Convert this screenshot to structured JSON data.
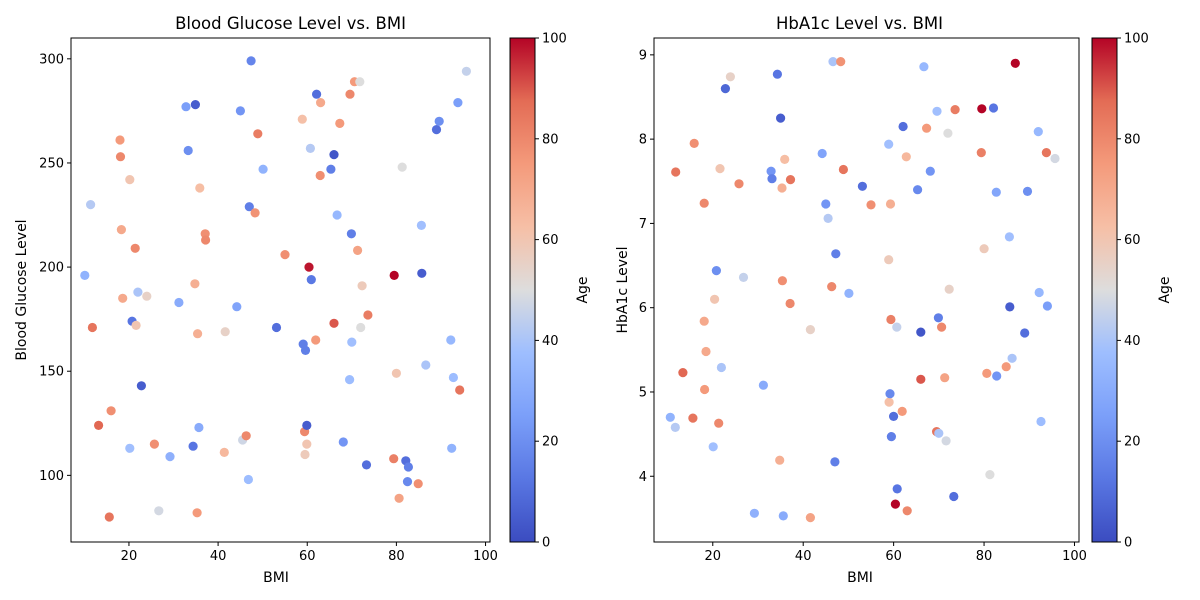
{
  "colors": {
    "colormap": "coolwarm",
    "low": "#3b4cc0",
    "mid": "#dddddd",
    "high": "#b40426",
    "axis": "#000000",
    "background": "#ffffff"
  },
  "chart_data": [
    {
      "type": "scatter",
      "title": "Blood Glucose Level vs. BMI",
      "xlabel": "BMI",
      "ylabel": "Blood Glucose Level",
      "xlim": [
        7,
        101
      ],
      "ylim": [
        68,
        310
      ],
      "xticks": [
        20,
        40,
        60,
        80,
        100
      ],
      "yticks": [
        100,
        150,
        200,
        250,
        300
      ],
      "colorbar": {
        "label": "Age",
        "range": [
          0,
          100
        ],
        "ticks": [
          0,
          20,
          40,
          60,
          80,
          100
        ]
      },
      "grid": false,
      "points": [
        {
          "x": 10.1,
          "y": 196,
          "c": 33
        },
        {
          "x": 11.4,
          "y": 230,
          "c": 42
        },
        {
          "x": 11.8,
          "y": 171,
          "c": 85
        },
        {
          "x": 13.2,
          "y": 124,
          "c": 88
        },
        {
          "x": 15.6,
          "y": 80,
          "c": 85
        },
        {
          "x": 16.0,
          "y": 131,
          "c": 78
        },
        {
          "x": 18.0,
          "y": 261,
          "c": 75
        },
        {
          "x": 18.1,
          "y": 253,
          "c": 80
        },
        {
          "x": 18.3,
          "y": 218,
          "c": 70
        },
        {
          "x": 18.6,
          "y": 185,
          "c": 70
        },
        {
          "x": 20.2,
          "y": 242,
          "c": 60
        },
        {
          "x": 20.2,
          "y": 113,
          "c": 38
        },
        {
          "x": 20.7,
          "y": 174,
          "c": 12
        },
        {
          "x": 21.4,
          "y": 209,
          "c": 80
        },
        {
          "x": 21.6,
          "y": 172,
          "c": 60
        },
        {
          "x": 22.0,
          "y": 188,
          "c": 40
        },
        {
          "x": 22.8,
          "y": 143,
          "c": 5
        },
        {
          "x": 24.0,
          "y": 186,
          "c": 55
        },
        {
          "x": 25.7,
          "y": 115,
          "c": 78
        },
        {
          "x": 26.7,
          "y": 83,
          "c": 48
        },
        {
          "x": 29.2,
          "y": 109,
          "c": 32
        },
        {
          "x": 31.2,
          "y": 183,
          "c": 30
        },
        {
          "x": 32.8,
          "y": 277,
          "c": 25
        },
        {
          "x": 33.3,
          "y": 256,
          "c": 20
        },
        {
          "x": 34.4,
          "y": 114,
          "c": 12
        },
        {
          "x": 34.8,
          "y": 192,
          "c": 68
        },
        {
          "x": 34.9,
          "y": 278,
          "c": 5
        },
        {
          "x": 35.3,
          "y": 82,
          "c": 75
        },
        {
          "x": 35.4,
          "y": 168,
          "c": 68
        },
        {
          "x": 35.7,
          "y": 123,
          "c": 30
        },
        {
          "x": 35.9,
          "y": 238,
          "c": 63
        },
        {
          "x": 37.1,
          "y": 216,
          "c": 78
        },
        {
          "x": 37.2,
          "y": 213,
          "c": 80
        },
        {
          "x": 41.4,
          "y": 111,
          "c": 65
        },
        {
          "x": 41.6,
          "y": 169,
          "c": 55
        },
        {
          "x": 44.2,
          "y": 181,
          "c": 27
        },
        {
          "x": 45.0,
          "y": 275,
          "c": 22
        },
        {
          "x": 45.5,
          "y": 117,
          "c": 47
        },
        {
          "x": 46.3,
          "y": 119,
          "c": 80
        },
        {
          "x": 46.8,
          "y": 98,
          "c": 37
        },
        {
          "x": 47.0,
          "y": 229,
          "c": 15
        },
        {
          "x": 47.4,
          "y": 299,
          "c": 17
        },
        {
          "x": 48.3,
          "y": 226,
          "c": 77
        },
        {
          "x": 48.9,
          "y": 264,
          "c": 83
        },
        {
          "x": 50.1,
          "y": 247,
          "c": 33
        },
        {
          "x": 53.1,
          "y": 171,
          "c": 10
        },
        {
          "x": 55.0,
          "y": 206,
          "c": 78
        },
        {
          "x": 58.9,
          "y": 271,
          "c": 62
        },
        {
          "x": 59.1,
          "y": 163,
          "c": 15
        },
        {
          "x": 59.4,
          "y": 121,
          "c": 80
        },
        {
          "x": 59.5,
          "y": 110,
          "c": 58
        },
        {
          "x": 59.6,
          "y": 160,
          "c": 15
        },
        {
          "x": 59.9,
          "y": 115,
          "c": 60
        },
        {
          "x": 59.9,
          "y": 124,
          "c": 5
        },
        {
          "x": 60.4,
          "y": 200,
          "c": 98
        },
        {
          "x": 60.7,
          "y": 257,
          "c": 42
        },
        {
          "x": 60.9,
          "y": 194,
          "c": 13
        },
        {
          "x": 61.9,
          "y": 165,
          "c": 75
        },
        {
          "x": 62.1,
          "y": 283,
          "c": 10
        },
        {
          "x": 62.9,
          "y": 244,
          "c": 78
        },
        {
          "x": 63.0,
          "y": 279,
          "c": 70
        },
        {
          "x": 65.3,
          "y": 247,
          "c": 15
        },
        {
          "x": 66.0,
          "y": 173,
          "c": 90
        },
        {
          "x": 66.0,
          "y": 254,
          "c": 3
        },
        {
          "x": 66.7,
          "y": 225,
          "c": 35
        },
        {
          "x": 67.3,
          "y": 269,
          "c": 75
        },
        {
          "x": 68.1,
          "y": 116,
          "c": 22
        },
        {
          "x": 69.5,
          "y": 146,
          "c": 37
        },
        {
          "x": 69.6,
          "y": 283,
          "c": 80
        },
        {
          "x": 69.9,
          "y": 216,
          "c": 15
        },
        {
          "x": 70.0,
          "y": 164,
          "c": 38
        },
        {
          "x": 70.6,
          "y": 289,
          "c": 75
        },
        {
          "x": 71.3,
          "y": 208,
          "c": 72
        },
        {
          "x": 71.8,
          "y": 289,
          "c": 50
        },
        {
          "x": 72.0,
          "y": 171,
          "c": 50
        },
        {
          "x": 72.3,
          "y": 191,
          "c": 58
        },
        {
          "x": 73.3,
          "y": 105,
          "c": 10
        },
        {
          "x": 73.6,
          "y": 177,
          "c": 83
        },
        {
          "x": 79.4,
          "y": 108,
          "c": 82
        },
        {
          "x": 79.5,
          "y": 196,
          "c": 100
        },
        {
          "x": 80.0,
          "y": 149,
          "c": 60
        },
        {
          "x": 80.6,
          "y": 89,
          "c": 72
        },
        {
          "x": 81.3,
          "y": 248,
          "c": 50
        },
        {
          "x": 82.1,
          "y": 107,
          "c": 10
        },
        {
          "x": 82.5,
          "y": 97,
          "c": 18
        },
        {
          "x": 82.7,
          "y": 104,
          "c": 15
        },
        {
          "x": 84.9,
          "y": 96,
          "c": 78
        },
        {
          "x": 85.6,
          "y": 220,
          "c": 38
        },
        {
          "x": 85.7,
          "y": 197,
          "c": 5
        },
        {
          "x": 86.6,
          "y": 153,
          "c": 40
        },
        {
          "x": 89.0,
          "y": 266,
          "c": 10
        },
        {
          "x": 89.6,
          "y": 270,
          "c": 20
        },
        {
          "x": 92.2,
          "y": 165,
          "c": 35
        },
        {
          "x": 92.4,
          "y": 113,
          "c": 33
        },
        {
          "x": 92.8,
          "y": 147,
          "c": 37
        },
        {
          "x": 93.8,
          "y": 279,
          "c": 25
        },
        {
          "x": 94.2,
          "y": 141,
          "c": 85
        },
        {
          "x": 95.7,
          "y": 294,
          "c": 45
        }
      ]
    },
    {
      "type": "scatter",
      "title": "HbA1c Level vs. BMI",
      "xlabel": "BMI",
      "ylabel": "HbA1c Level",
      "xlim": [
        7,
        101
      ],
      "ylim": [
        3.22,
        9.2
      ],
      "xticks": [
        20,
        40,
        60,
        80,
        100
      ],
      "yticks": [
        4,
        5,
        6,
        7,
        8,
        9
      ],
      "colorbar": {
        "label": "Age",
        "range": [
          0,
          100
        ],
        "ticks": [
          0,
          20,
          40,
          60,
          80,
          100
        ]
      },
      "grid": false,
      "points": [
        {
          "x": 10.6,
          "y": 4.7,
          "c": 33
        },
        {
          "x": 11.7,
          "y": 4.58,
          "c": 42
        },
        {
          "x": 11.8,
          "y": 7.61,
          "c": 85
        },
        {
          "x": 13.4,
          "y": 5.23,
          "c": 88
        },
        {
          "x": 15.6,
          "y": 4.69,
          "c": 85
        },
        {
          "x": 15.9,
          "y": 7.95,
          "c": 78
        },
        {
          "x": 18.1,
          "y": 7.24,
          "c": 80
        },
        {
          "x": 18.1,
          "y": 5.84,
          "c": 70
        },
        {
          "x": 18.2,
          "y": 5.03,
          "c": 75
        },
        {
          "x": 18.5,
          "y": 5.48,
          "c": 70
        },
        {
          "x": 20.1,
          "y": 4.35,
          "c": 38
        },
        {
          "x": 20.4,
          "y": 6.1,
          "c": 60
        },
        {
          "x": 20.8,
          "y": 6.44,
          "c": 20
        },
        {
          "x": 21.3,
          "y": 4.63,
          "c": 80
        },
        {
          "x": 21.6,
          "y": 7.65,
          "c": 60
        },
        {
          "x": 21.9,
          "y": 5.29,
          "c": 40
        },
        {
          "x": 22.8,
          "y": 8.6,
          "c": 8
        },
        {
          "x": 23.9,
          "y": 8.74,
          "c": 55
        },
        {
          "x": 25.8,
          "y": 7.47,
          "c": 80
        },
        {
          "x": 26.8,
          "y": 6.36,
          "c": 45
        },
        {
          "x": 29.2,
          "y": 3.56,
          "c": 32
        },
        {
          "x": 31.2,
          "y": 5.08,
          "c": 30
        },
        {
          "x": 32.9,
          "y": 7.62,
          "c": 22
        },
        {
          "x": 33.1,
          "y": 7.53,
          "c": 15
        },
        {
          "x": 34.3,
          "y": 8.77,
          "c": 12
        },
        {
          "x": 34.8,
          "y": 4.19,
          "c": 68
        },
        {
          "x": 35.0,
          "y": 8.25,
          "c": 5
        },
        {
          "x": 35.3,
          "y": 7.42,
          "c": 68
        },
        {
          "x": 35.4,
          "y": 6.32,
          "c": 78
        },
        {
          "x": 35.6,
          "y": 3.53,
          "c": 30
        },
        {
          "x": 35.9,
          "y": 7.76,
          "c": 63
        },
        {
          "x": 37.1,
          "y": 6.05,
          "c": 80
        },
        {
          "x": 37.2,
          "y": 7.52,
          "c": 85
        },
        {
          "x": 41.6,
          "y": 5.74,
          "c": 55
        },
        {
          "x": 41.6,
          "y": 3.51,
          "c": 72
        },
        {
          "x": 44.2,
          "y": 7.83,
          "c": 27
        },
        {
          "x": 45.0,
          "y": 7.23,
          "c": 22
        },
        {
          "x": 45.5,
          "y": 7.06,
          "c": 42
        },
        {
          "x": 46.3,
          "y": 6.25,
          "c": 80
        },
        {
          "x": 46.6,
          "y": 8.92,
          "c": 40
        },
        {
          "x": 47.0,
          "y": 4.17,
          "c": 15
        },
        {
          "x": 47.2,
          "y": 6.64,
          "c": 15
        },
        {
          "x": 48.3,
          "y": 8.92,
          "c": 77
        },
        {
          "x": 48.9,
          "y": 7.64,
          "c": 85
        },
        {
          "x": 50.1,
          "y": 6.17,
          "c": 33
        },
        {
          "x": 53.1,
          "y": 7.44,
          "c": 10
        },
        {
          "x": 55.0,
          "y": 7.22,
          "c": 78
        },
        {
          "x": 58.9,
          "y": 6.57,
          "c": 58
        },
        {
          "x": 58.9,
          "y": 7.94,
          "c": 38
        },
        {
          "x": 59.0,
          "y": 4.88,
          "c": 62
        },
        {
          "x": 59.2,
          "y": 4.98,
          "c": 18
        },
        {
          "x": 59.3,
          "y": 7.23,
          "c": 68
        },
        {
          "x": 59.4,
          "y": 5.86,
          "c": 82
        },
        {
          "x": 59.5,
          "y": 4.47,
          "c": 15
        },
        {
          "x": 60.0,
          "y": 4.71,
          "c": 10
        },
        {
          "x": 60.4,
          "y": 3.67,
          "c": 100
        },
        {
          "x": 60.7,
          "y": 5.77,
          "c": 45
        },
        {
          "x": 60.8,
          "y": 3.85,
          "c": 12
        },
        {
          "x": 61.9,
          "y": 4.77,
          "c": 75
        },
        {
          "x": 62.1,
          "y": 8.15,
          "c": 10
        },
        {
          "x": 62.8,
          "y": 7.79,
          "c": 65
        },
        {
          "x": 63.0,
          "y": 3.59,
          "c": 80
        },
        {
          "x": 65.3,
          "y": 7.4,
          "c": 18
        },
        {
          "x": 66.0,
          "y": 5.15,
          "c": 90
        },
        {
          "x": 66.0,
          "y": 5.71,
          "c": 3
        },
        {
          "x": 66.7,
          "y": 8.86,
          "c": 35
        },
        {
          "x": 67.3,
          "y": 8.13,
          "c": 75
        },
        {
          "x": 68.1,
          "y": 7.62,
          "c": 22
        },
        {
          "x": 69.5,
          "y": 4.53,
          "c": 85
        },
        {
          "x": 69.6,
          "y": 8.33,
          "c": 38
        },
        {
          "x": 69.9,
          "y": 5.88,
          "c": 15
        },
        {
          "x": 70.0,
          "y": 4.51,
          "c": 40
        },
        {
          "x": 70.6,
          "y": 5.77,
          "c": 80
        },
        {
          "x": 71.3,
          "y": 5.17,
          "c": 72
        },
        {
          "x": 71.6,
          "y": 4.42,
          "c": 48
        },
        {
          "x": 72.0,
          "y": 8.07,
          "c": 50
        },
        {
          "x": 72.3,
          "y": 6.22,
          "c": 55
        },
        {
          "x": 73.3,
          "y": 3.76,
          "c": 10
        },
        {
          "x": 73.6,
          "y": 8.35,
          "c": 83
        },
        {
          "x": 79.4,
          "y": 7.84,
          "c": 82
        },
        {
          "x": 79.5,
          "y": 8.36,
          "c": 100
        },
        {
          "x": 80.0,
          "y": 6.7,
          "c": 58
        },
        {
          "x": 80.6,
          "y": 5.22,
          "c": 75
        },
        {
          "x": 81.3,
          "y": 4.02,
          "c": 50
        },
        {
          "x": 82.1,
          "y": 8.37,
          "c": 12
        },
        {
          "x": 82.7,
          "y": 7.37,
          "c": 28
        },
        {
          "x": 82.8,
          "y": 5.19,
          "c": 22
        },
        {
          "x": 84.9,
          "y": 5.3,
          "c": 75
        },
        {
          "x": 85.6,
          "y": 6.84,
          "c": 38
        },
        {
          "x": 85.7,
          "y": 6.01,
          "c": 5
        },
        {
          "x": 86.2,
          "y": 5.4,
          "c": 40
        },
        {
          "x": 86.9,
          "y": 8.9,
          "c": 100
        },
        {
          "x": 89.0,
          "y": 5.7,
          "c": 10
        },
        {
          "x": 89.6,
          "y": 7.38,
          "c": 20
        },
        {
          "x": 92.0,
          "y": 8.09,
          "c": 35
        },
        {
          "x": 92.2,
          "y": 6.18,
          "c": 35
        },
        {
          "x": 92.6,
          "y": 4.65,
          "c": 37
        },
        {
          "x": 93.8,
          "y": 7.84,
          "c": 85
        },
        {
          "x": 94.0,
          "y": 6.02,
          "c": 25
        },
        {
          "x": 95.7,
          "y": 7.77,
          "c": 48
        }
      ]
    }
  ]
}
